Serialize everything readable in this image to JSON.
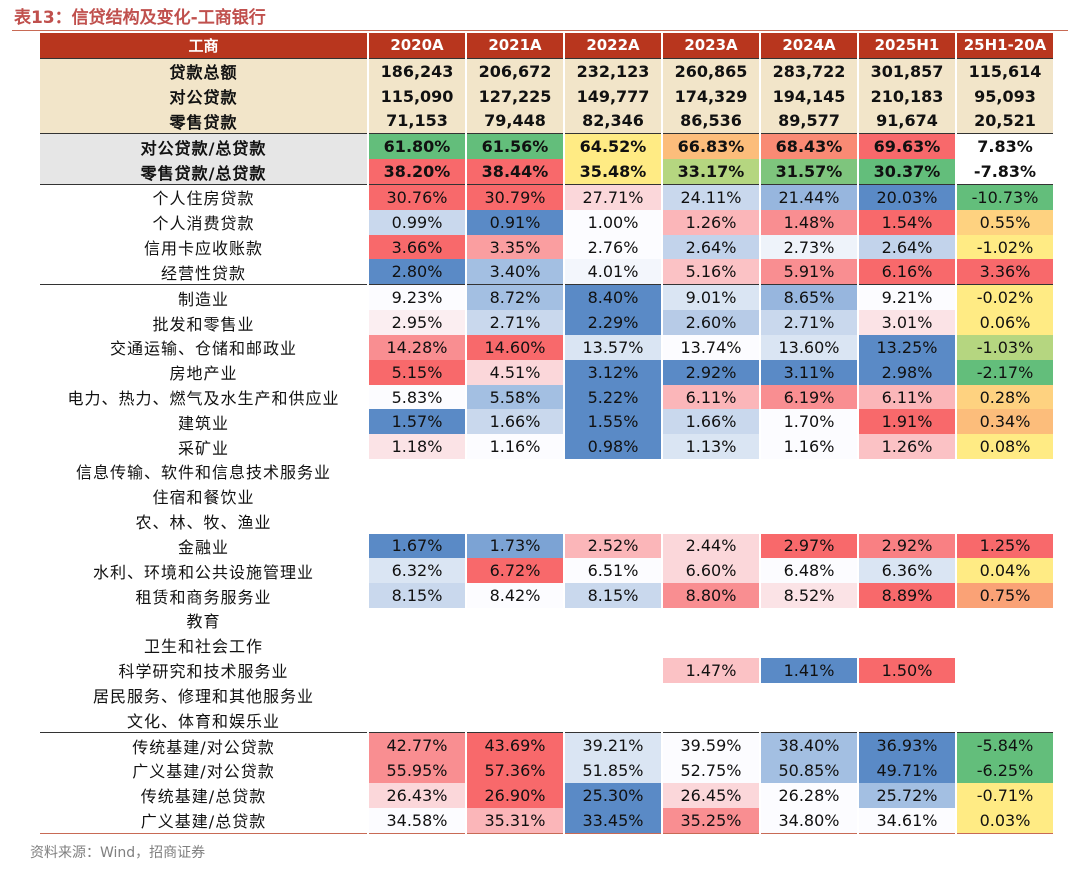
{
  "title": "表13：信贷结构及变化-工商银行",
  "source": "资料来源：Wind，招商证券",
  "columns": [
    "工商",
    "2020A",
    "2021A",
    "2022A",
    "2023A",
    "2024A",
    "2025H1",
    "25H1-20A"
  ],
  "groups": [
    {
      "style": "g1",
      "rows": [
        {
          "label": "贷款总额",
          "cells": [
            {
              "v": "186,243"
            },
            {
              "v": "206,672"
            },
            {
              "v": "232,123"
            },
            {
              "v": "260,865"
            },
            {
              "v": "283,722"
            },
            {
              "v": "301,857"
            },
            {
              "v": "115,614"
            }
          ]
        },
        {
          "label": "对公贷款",
          "cells": [
            {
              "v": "115,090"
            },
            {
              "v": "127,225"
            },
            {
              "v": "149,777"
            },
            {
              "v": "174,329"
            },
            {
              "v": "194,145"
            },
            {
              "v": "210,183"
            },
            {
              "v": "95,093"
            }
          ]
        },
        {
          "label": "零售贷款",
          "cells": [
            {
              "v": "71,153"
            },
            {
              "v": "79,448"
            },
            {
              "v": "82,346"
            },
            {
              "v": "86,536"
            },
            {
              "v": "89,577"
            },
            {
              "v": "91,674"
            },
            {
              "v": "20,521"
            }
          ]
        }
      ]
    },
    {
      "style": "g2",
      "rows": [
        {
          "label": "对公贷款/总贷款",
          "cells": [
            {
              "v": "61.80%",
              "c": "#63be7b"
            },
            {
              "v": "61.56%",
              "c": "#63be7b"
            },
            {
              "v": "64.52%",
              "c": "#ffeb84"
            },
            {
              "v": "66.83%",
              "c": "#fcbd7b"
            },
            {
              "v": "68.43%",
              "c": "#f98a74"
            },
            {
              "v": "69.63%",
              "c": "#f8696b"
            },
            {
              "v": "7.83%",
              "c": "#ffffff"
            }
          ]
        },
        {
          "label": "零售贷款/总贷款",
          "cells": [
            {
              "v": "38.20%",
              "c": "#f8696b"
            },
            {
              "v": "38.44%",
              "c": "#f8696b"
            },
            {
              "v": "35.48%",
              "c": "#ffeb84"
            },
            {
              "v": "33.17%",
              "c": "#b5d680"
            },
            {
              "v": "31.57%",
              "c": "#7ec57d"
            },
            {
              "v": "30.37%",
              "c": "#63be7b"
            },
            {
              "v": "-7.83%",
              "c": "#ffffff"
            }
          ]
        }
      ]
    },
    {
      "style": "g3",
      "rows": [
        {
          "label": "个人住房贷款",
          "cells": [
            {
              "v": "30.76%",
              "c": "#f8696b"
            },
            {
              "v": "30.79%",
              "c": "#f8696b"
            },
            {
              "v": "27.71%",
              "c": "#fbd7da"
            },
            {
              "v": "24.11%",
              "c": "#c9d8ed"
            },
            {
              "v": "21.44%",
              "c": "#97b6de"
            },
            {
              "v": "20.03%",
              "c": "#5a8ac6"
            },
            {
              "v": "-10.73%",
              "c": "#63be7b"
            }
          ]
        },
        {
          "label": "个人消费贷款",
          "cells": [
            {
              "v": "0.99%",
              "c": "#c9d8ed"
            },
            {
              "v": "0.91%",
              "c": "#5a8ac6"
            },
            {
              "v": "1.00%",
              "c": "#fcfcff"
            },
            {
              "v": "1.26%",
              "c": "#fbb6b9"
            },
            {
              "v": "1.48%",
              "c": "#f98e91"
            },
            {
              "v": "1.54%",
              "c": "#f8696b"
            },
            {
              "v": "0.55%",
              "c": "#fed280"
            }
          ]
        },
        {
          "label": "信用卡应收账款",
          "cells": [
            {
              "v": "3.66%",
              "c": "#f8696b"
            },
            {
              "v": "3.35%",
              "c": "#fa9ea0"
            },
            {
              "v": "2.76%",
              "c": "#fcfcff"
            },
            {
              "v": "2.64%",
              "c": "#c2d3eb"
            },
            {
              "v": "2.73%",
              "c": "#eef3fa"
            },
            {
              "v": "2.64%",
              "c": "#c2d3eb"
            },
            {
              "v": "-1.02%",
              "c": "#ffeb84"
            }
          ]
        },
        {
          "label": "经营性贷款",
          "cells": [
            {
              "v": "2.80%",
              "c": "#5a8ac6"
            },
            {
              "v": "3.40%",
              "c": "#a3bfe2"
            },
            {
              "v": "4.01%",
              "c": "#f3f6fc"
            },
            {
              "v": "5.16%",
              "c": "#fbc2c5"
            },
            {
              "v": "5.91%",
              "c": "#f98e91"
            },
            {
              "v": "6.16%",
              "c": "#f8696b"
            },
            {
              "v": "3.36%",
              "c": "#f8696b"
            }
          ]
        }
      ]
    },
    {
      "style": "g4",
      "rows": [
        {
          "label": "制造业",
          "cells": [
            {
              "v": "9.23%",
              "c": "#fcfcff"
            },
            {
              "v": "8.72%",
              "c": "#a3bfe2"
            },
            {
              "v": "8.40%",
              "c": "#5a8ac6"
            },
            {
              "v": "9.01%",
              "c": "#dae5f3"
            },
            {
              "v": "8.65%",
              "c": "#97b6de"
            },
            {
              "v": "9.21%",
              "c": "#fcfcff"
            },
            {
              "v": "-0.02%",
              "c": "#ffeb84"
            }
          ]
        },
        {
          "label": "批发和零售业",
          "cells": [
            {
              "v": "2.95%",
              "c": "#fbeef1"
            },
            {
              "v": "2.71%",
              "c": "#c9d8ed"
            },
            {
              "v": "2.29%",
              "c": "#5a8ac6"
            },
            {
              "v": "2.60%",
              "c": "#b7cbe7"
            },
            {
              "v": "2.71%",
              "c": "#c9d8ed"
            },
            {
              "v": "3.01%",
              "c": "#fbe3e6"
            },
            {
              "v": "0.06%",
              "c": "#ffeb84"
            }
          ]
        },
        {
          "label": "交通运输、仓储和邮政业",
          "cells": [
            {
              "v": "14.28%",
              "c": "#f98e91"
            },
            {
              "v": "14.60%",
              "c": "#f8696b"
            },
            {
              "v": "13.57%",
              "c": "#dae5f3"
            },
            {
              "v": "13.74%",
              "c": "#fcfcff"
            },
            {
              "v": "13.60%",
              "c": "#dae5f3"
            },
            {
              "v": "13.25%",
              "c": "#5a8ac6"
            },
            {
              "v": "-1.03%",
              "c": "#b5d680"
            }
          ]
        },
        {
          "label": "房地产业",
          "cells": [
            {
              "v": "5.15%",
              "c": "#f8696b"
            },
            {
              "v": "4.51%",
              "c": "#fbd7da"
            },
            {
              "v": "3.12%",
              "c": "#5a8ac6"
            },
            {
              "v": "2.92%",
              "c": "#5a8ac6"
            },
            {
              "v": "3.11%",
              "c": "#5a8ac6"
            },
            {
              "v": "2.98%",
              "c": "#5a8ac6"
            },
            {
              "v": "-2.17%",
              "c": "#63be7b"
            }
          ]
        },
        {
          "label": "电力、热力、燃气及水生产和供应业",
          "cells": [
            {
              "v": "5.83%",
              "c": "#fcfcff"
            },
            {
              "v": "5.58%",
              "c": "#a3bfe2"
            },
            {
              "v": "5.22%",
              "c": "#5a8ac6"
            },
            {
              "v": "6.11%",
              "c": "#fbb6b9"
            },
            {
              "v": "6.19%",
              "c": "#f98e91"
            },
            {
              "v": "6.11%",
              "c": "#fbb6b9"
            },
            {
              "v": "0.28%",
              "c": "#fed280"
            }
          ]
        },
        {
          "label": "建筑业",
          "cells": [
            {
              "v": "1.57%",
              "c": "#5a8ac6"
            },
            {
              "v": "1.66%",
              "c": "#c9d8ed"
            },
            {
              "v": "1.55%",
              "c": "#5a8ac6"
            },
            {
              "v": "1.66%",
              "c": "#c9d8ed"
            },
            {
              "v": "1.70%",
              "c": "#fcfcff"
            },
            {
              "v": "1.91%",
              "c": "#f8696b"
            },
            {
              "v": "0.34%",
              "c": "#fcbd7b"
            }
          ]
        },
        {
          "label": "采矿业",
          "cells": [
            {
              "v": "1.18%",
              "c": "#fbe3e6"
            },
            {
              "v": "1.16%",
              "c": "#fcfcff"
            },
            {
              "v": "0.98%",
              "c": "#5a8ac6"
            },
            {
              "v": "1.13%",
              "c": "#dae5f3"
            },
            {
              "v": "1.16%",
              "c": "#fcfcff"
            },
            {
              "v": "1.26%",
              "c": "#fbc2c5"
            },
            {
              "v": "0.08%",
              "c": "#ffeb84"
            }
          ]
        },
        {
          "label": "信息传输、软件和信息技术服务业",
          "cells": [
            {
              "v": ""
            },
            {
              "v": ""
            },
            {
              "v": ""
            },
            {
              "v": ""
            },
            {
              "v": ""
            },
            {
              "v": ""
            },
            {
              "v": ""
            }
          ]
        },
        {
          "label": "住宿和餐饮业",
          "cells": [
            {
              "v": ""
            },
            {
              "v": ""
            },
            {
              "v": ""
            },
            {
              "v": ""
            },
            {
              "v": ""
            },
            {
              "v": ""
            },
            {
              "v": ""
            }
          ]
        },
        {
          "label": "农、林、牧、渔业",
          "cells": [
            {
              "v": ""
            },
            {
              "v": ""
            },
            {
              "v": ""
            },
            {
              "v": ""
            },
            {
              "v": ""
            },
            {
              "v": ""
            },
            {
              "v": ""
            }
          ]
        },
        {
          "label": "金融业",
          "cells": [
            {
              "v": "1.67%",
              "c": "#5a8ac6"
            },
            {
              "v": "1.73%",
              "c": "#7ca3d4"
            },
            {
              "v": "2.52%",
              "c": "#fbb6b9"
            },
            {
              "v": "2.44%",
              "c": "#fbd7da"
            },
            {
              "v": "2.97%",
              "c": "#f8696b"
            },
            {
              "v": "2.92%",
              "c": "#f98083"
            },
            {
              "v": "1.25%",
              "c": "#f8696b"
            }
          ]
        },
        {
          "label": "水利、环境和公共设施管理业",
          "cells": [
            {
              "v": "6.32%",
              "c": "#dae5f3"
            },
            {
              "v": "6.72%",
              "c": "#f8696b"
            },
            {
              "v": "6.51%",
              "c": "#fcfcff"
            },
            {
              "v": "6.60%",
              "c": "#fbd7da"
            },
            {
              "v": "6.48%",
              "c": "#fcfcff"
            },
            {
              "v": "6.36%",
              "c": "#dae5f3"
            },
            {
              "v": "0.04%",
              "c": "#ffeb84"
            }
          ]
        },
        {
          "label": "租赁和商务服务业",
          "cells": [
            {
              "v": "8.15%",
              "c": "#c9d8ed"
            },
            {
              "v": "8.42%",
              "c": "#fcfcff"
            },
            {
              "v": "8.15%",
              "c": "#c9d8ed"
            },
            {
              "v": "8.80%",
              "c": "#f98e91"
            },
            {
              "v": "8.52%",
              "c": "#fbe3e6"
            },
            {
              "v": "8.89%",
              "c": "#f8696b"
            },
            {
              "v": "0.75%",
              "c": "#faa276"
            }
          ]
        },
        {
          "label": "教育",
          "cells": [
            {
              "v": ""
            },
            {
              "v": ""
            },
            {
              "v": ""
            },
            {
              "v": ""
            },
            {
              "v": ""
            },
            {
              "v": ""
            },
            {
              "v": ""
            }
          ]
        },
        {
          "label": "卫生和社会工作",
          "cells": [
            {
              "v": ""
            },
            {
              "v": ""
            },
            {
              "v": ""
            },
            {
              "v": ""
            },
            {
              "v": ""
            },
            {
              "v": ""
            },
            {
              "v": ""
            }
          ]
        },
        {
          "label": "科学研究和技术服务业",
          "cells": [
            {
              "v": ""
            },
            {
              "v": ""
            },
            {
              "v": ""
            },
            {
              "v": "1.47%",
              "c": "#fbc2c5"
            },
            {
              "v": "1.41%",
              "c": "#5a8ac6"
            },
            {
              "v": "1.50%",
              "c": "#f8696b"
            },
            {
              "v": ""
            }
          ]
        },
        {
          "label": "居民服务、修理和其他服务业",
          "cells": [
            {
              "v": ""
            },
            {
              "v": ""
            },
            {
              "v": ""
            },
            {
              "v": ""
            },
            {
              "v": ""
            },
            {
              "v": ""
            },
            {
              "v": ""
            }
          ]
        },
        {
          "label": "文化、体育和娱乐业",
          "cells": [
            {
              "v": ""
            },
            {
              "v": ""
            },
            {
              "v": ""
            },
            {
              "v": ""
            },
            {
              "v": ""
            },
            {
              "v": ""
            },
            {
              "v": ""
            }
          ]
        }
      ]
    },
    {
      "style": "g5",
      "rows": [
        {
          "label": "传统基建/对公贷款",
          "cells": [
            {
              "v": "42.77%",
              "c": "#f98e91"
            },
            {
              "v": "43.69%",
              "c": "#f8696b"
            },
            {
              "v": "39.21%",
              "c": "#dae5f3"
            },
            {
              "v": "39.59%",
              "c": "#fcfcff"
            },
            {
              "v": "38.40%",
              "c": "#a3bfe2"
            },
            {
              "v": "36.93%",
              "c": "#5a8ac6"
            },
            {
              "v": "-5.84%",
              "c": "#63be7b"
            }
          ]
        },
        {
          "label": "广义基建/对公贷款",
          "cells": [
            {
              "v": "55.95%",
              "c": "#f98e91"
            },
            {
              "v": "57.36%",
              "c": "#f8696b"
            },
            {
              "v": "51.85%",
              "c": "#dae5f3"
            },
            {
              "v": "52.75%",
              "c": "#fcfcff"
            },
            {
              "v": "50.85%",
              "c": "#a3bfe2"
            },
            {
              "v": "49.71%",
              "c": "#5a8ac6"
            },
            {
              "v": "-6.25%",
              "c": "#63be7b"
            }
          ]
        },
        {
          "label": "传统基建/总贷款",
          "cells": [
            {
              "v": "26.43%",
              "c": "#fbd7da"
            },
            {
              "v": "26.90%",
              "c": "#f8696b"
            },
            {
              "v": "25.30%",
              "c": "#5a8ac6"
            },
            {
              "v": "26.45%",
              "c": "#fbd7da"
            },
            {
              "v": "26.28%",
              "c": "#fcfcff"
            },
            {
              "v": "25.72%",
              "c": "#a3bfe2"
            },
            {
              "v": "-0.71%",
              "c": "#ffeb84"
            }
          ]
        },
        {
          "label": "广义基建/总贷款",
          "cells": [
            {
              "v": "34.58%",
              "c": "#fcfcff"
            },
            {
              "v": "35.31%",
              "c": "#fbb6b9"
            },
            {
              "v": "33.45%",
              "c": "#5a8ac6"
            },
            {
              "v": "35.25%",
              "c": "#f98e91"
            },
            {
              "v": "34.80%",
              "c": "#fcfcff"
            },
            {
              "v": "34.61%",
              "c": "#fcfcff"
            },
            {
              "v": "0.03%",
              "c": "#ffeb84"
            }
          ]
        }
      ]
    }
  ]
}
